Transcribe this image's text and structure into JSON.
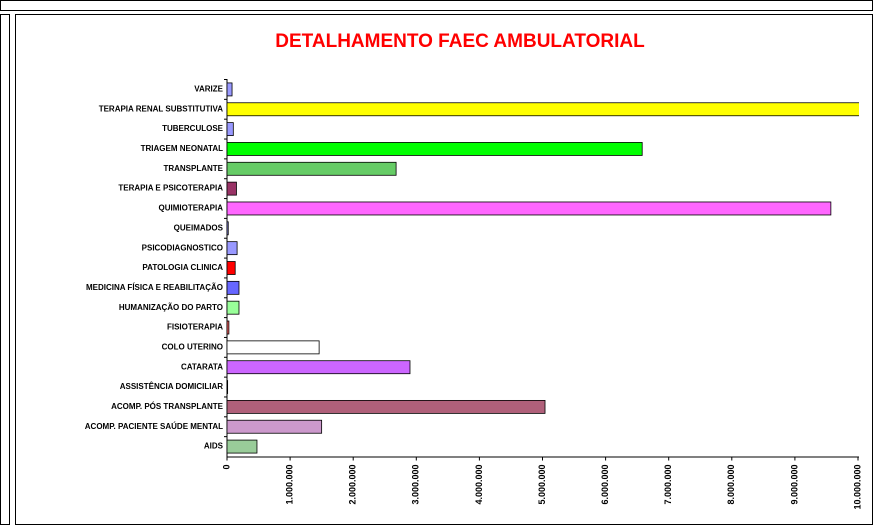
{
  "chart_data": {
    "type": "hbar",
    "title": "DETALHAMENTO FAEC AMBULATORIAL",
    "categories": [
      "VARIZE",
      "TERAPIA RENAL SUBSTITUTIVA",
      "TUBERCULOSE",
      "TRIAGEM NEONATAL",
      "TRANSPLANTE",
      "TERAPIA E PSICOTERAPIA",
      "QUIMIOTERAPIA",
      "QUEIMADOS",
      "PSICODIAGNOSTICO",
      "PATOLOGIA CLINICA",
      "MEDICINA FÍSICA E REABILITAÇÃO",
      "HUMANIZAÇÃO DO PARTO",
      "FISIOTERAPIA",
      "COLO UTERINO",
      "CATARATA",
      "ASSISTÊNCIA DOMICILIAR",
      "ACOMP. PÓS TRANSPLANTE",
      "ACOMP. PACIENTE SAÚDE MENTAL",
      "AIDS"
    ],
    "values": [
      80000,
      10200000,
      100000,
      6580000,
      2680000,
      150000,
      9570000,
      20000,
      160000,
      130000,
      190000,
      190000,
      30000,
      1460000,
      2900000,
      10000,
      5040000,
      1500000,
      475000
    ],
    "colors": [
      "#9999ff",
      "#ffff00",
      "#9999ff",
      "#00ff00",
      "#66cc66",
      "#993366",
      "#ff66ff",
      "#9999ff",
      "#9999ff",
      "#ff0000",
      "#6666ff",
      "#99ff99",
      "#ff6666",
      "#ffffff",
      "#cc66ff",
      "#cccccc",
      "#b0607a",
      "#cc99cc",
      "#99cc99"
    ],
    "xlim": [
      0,
      10000000
    ],
    "xticks": [
      0,
      {
        "value": 1000000,
        "label": "1.000.000"
      },
      {
        "value": 2000000,
        "label": "2.000.000"
      },
      {
        "value": 3000000,
        "label": "3.000.000"
      },
      {
        "value": 4000000,
        "label": "4.000.000"
      },
      {
        "value": 5000000,
        "label": "5.000.000"
      },
      {
        "value": 6000000,
        "label": "6.000.000"
      },
      {
        "value": 7000000,
        "label": "7.000.000"
      },
      {
        "value": 8000000,
        "label": "8.000.000"
      },
      {
        "value": 9000000,
        "label": "9.000.000"
      },
      {
        "value": 10000000,
        "label": "10.000.000"
      }
    ]
  }
}
